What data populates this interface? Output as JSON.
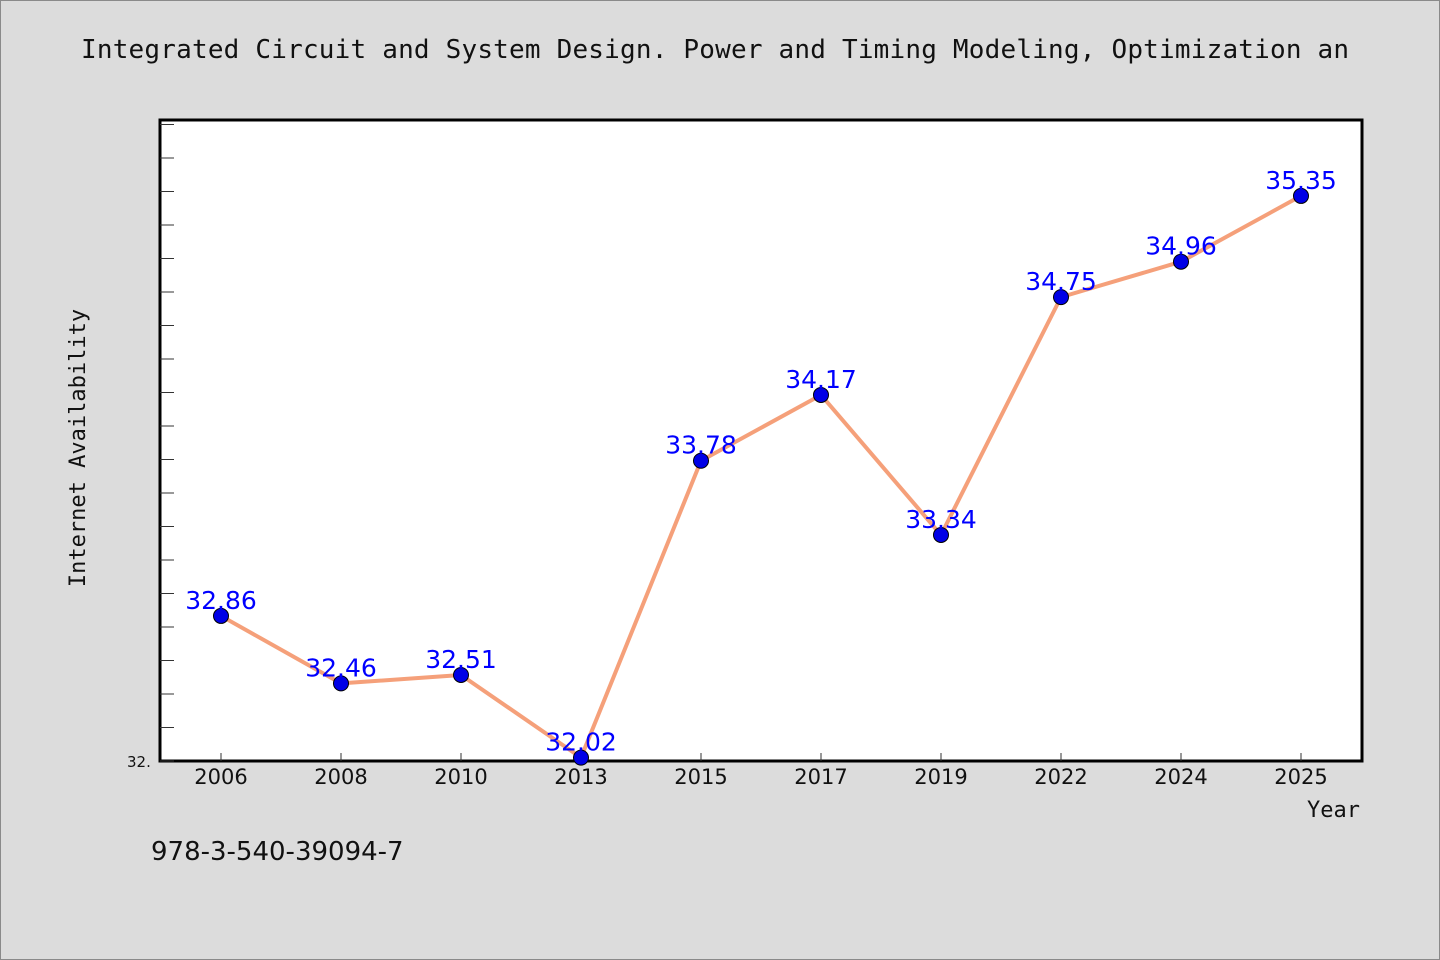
{
  "chart_data": {
    "type": "line",
    "title": "Integrated Circuit and System Design. Power and Timing Modeling, Optimization an",
    "xlabel": "Year",
    "ylabel": "Internet Availability",
    "categories": [
      "2006",
      "2008",
      "2010",
      "2013",
      "2015",
      "2017",
      "2019",
      "2022",
      "2024",
      "2025"
    ],
    "series": [
      {
        "values": [
          32.86,
          32.46,
          32.51,
          32.02,
          33.78,
          34.17,
          33.34,
          34.75,
          34.96,
          35.35
        ],
        "labels": [
          "32.86",
          "32.46",
          "32.51",
          "32.02",
          "33.78",
          "34.17",
          "33.34",
          "34.75",
          "34.96",
          "35.35"
        ]
      }
    ],
    "ylim": [
      32.0,
      35.8
    ],
    "y_tick_label": "32.",
    "grid": false,
    "colors": {
      "line": "#f5a07a",
      "marker": "#0000e6",
      "label": "#0000ff",
      "plot_bg": "#ffffff",
      "page_bg": "#dcdcdc"
    }
  },
  "footer": {
    "isbn": "978-3-540-39094-7"
  }
}
